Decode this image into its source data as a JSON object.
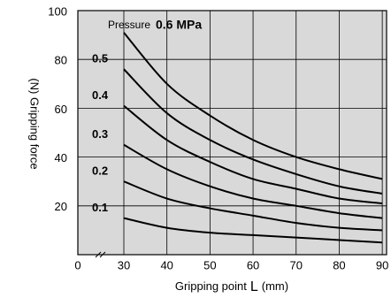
{
  "chart_data": {
    "type": "line",
    "annotation": "Pressure",
    "x_label_parts": [
      "Gripping point",
      "L",
      "(mm)"
    ],
    "y_label": "(N) Gripping force",
    "x": [
      30,
      40,
      50,
      60,
      70,
      80,
      90
    ],
    "series": [
      {
        "name": "0.6 MPa",
        "color": "#000000",
        "values": [
          91,
          70,
          57,
          47,
          40,
          35,
          31
        ]
      },
      {
        "name": "0.5",
        "color": "#000000",
        "values": [
          76,
          58,
          47,
          39,
          33,
          28,
          25
        ]
      },
      {
        "name": "0.4",
        "color": "#000000",
        "values": [
          61,
          47,
          38,
          31,
          27,
          23,
          21
        ]
      },
      {
        "name": "0.3",
        "color": "#000000",
        "values": [
          45,
          35,
          28,
          23,
          20,
          17,
          15
        ]
      },
      {
        "name": "0.2",
        "color": "#000000",
        "values": [
          30,
          23,
          19,
          16,
          13,
          11,
          10
        ]
      },
      {
        "name": "0.1",
        "color": "#000000",
        "values": [
          15,
          11,
          9,
          8,
          7,
          6,
          5
        ]
      }
    ],
    "xlim": [
      0,
      91
    ],
    "x_break": [
      0,
      30
    ],
    "xticks": [
      0,
      30,
      40,
      50,
      60,
      70,
      80,
      90
    ],
    "ylim": [
      0,
      100
    ],
    "yticks": [
      20,
      40,
      60,
      80,
      100
    ],
    "grid": true,
    "background": "#d9d9d9"
  }
}
